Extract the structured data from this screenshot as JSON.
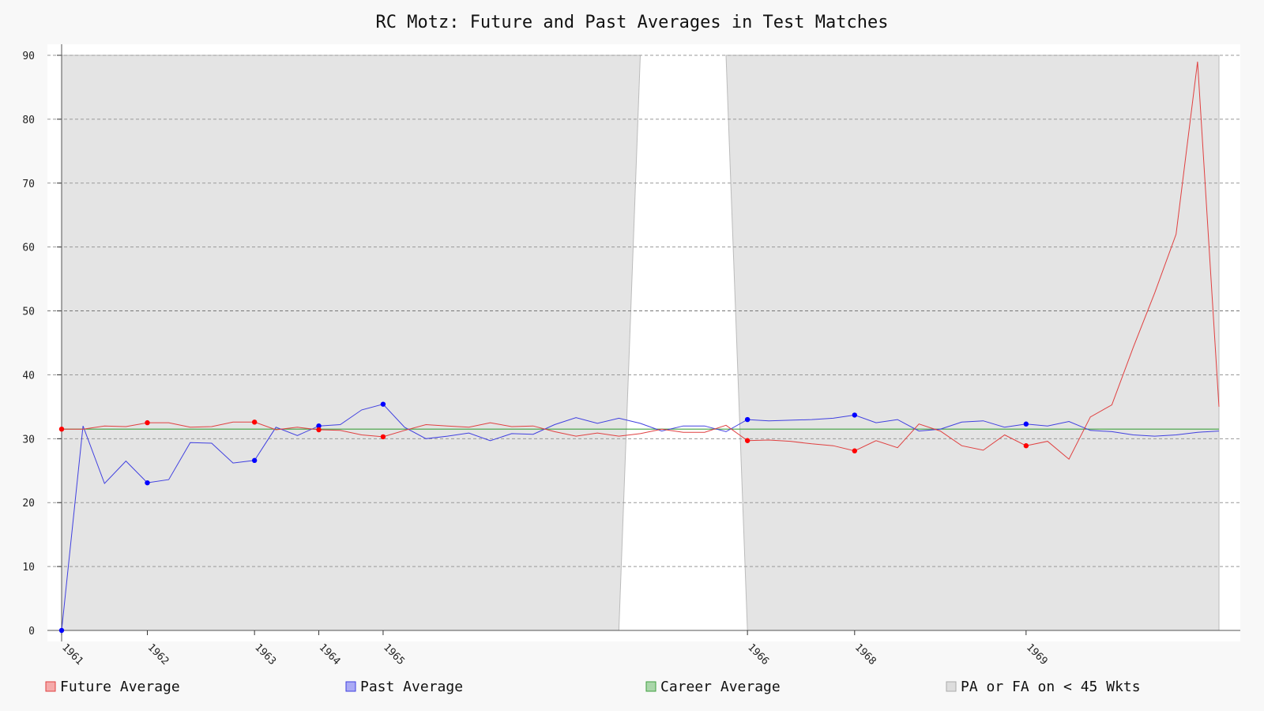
{
  "chart_data": {
    "type": "line",
    "title": "RC Motz: Future and Past Averages in Test Matches",
    "xlabel": "",
    "ylabel": "",
    "ylim": [
      0,
      90
    ],
    "yticks": [
      0,
      10,
      20,
      30,
      40,
      50,
      60,
      70,
      80,
      90
    ],
    "grid": true,
    "x": [
      0,
      1,
      2,
      3,
      4,
      5,
      6,
      7,
      8,
      9,
      10,
      11,
      12,
      13,
      14,
      15,
      16,
      17,
      18,
      19,
      20,
      21,
      22,
      23,
      24,
      25,
      26,
      27,
      28,
      29,
      30,
      31,
      32,
      33,
      34,
      35,
      36,
      37,
      38,
      39,
      40,
      41,
      42,
      43,
      44,
      45,
      46,
      47,
      48,
      49,
      50,
      51,
      52,
      53,
      54
    ],
    "year_ticks": [
      {
        "label": "1961",
        "index": 0
      },
      {
        "label": "1962",
        "index": 4
      },
      {
        "label": "1963",
        "index": 9
      },
      {
        "label": "1964",
        "index": 12
      },
      {
        "label": "1965",
        "index": 15
      },
      {
        "label": "1966",
        "index": 32
      },
      {
        "label": "1968",
        "index": 37
      },
      {
        "label": "1969",
        "index": 45
      }
    ],
    "series": [
      {
        "name": "Future Average",
        "color": "#e04040",
        "values": [
          31.5,
          31.5,
          32.0,
          31.9,
          32.5,
          32.5,
          31.8,
          31.9,
          32.6,
          32.6,
          31.4,
          31.8,
          31.4,
          31.3,
          30.6,
          30.3,
          31.3,
          32.2,
          32.0,
          31.8,
          32.5,
          31.9,
          32.0,
          31.1,
          30.4,
          30.9,
          30.4,
          30.8,
          31.5,
          31.0,
          31.0,
          32.1,
          29.7,
          29.8,
          29.6,
          29.2,
          28.9,
          28.1,
          29.7,
          28.6,
          32.3,
          31.2,
          28.9,
          28.2,
          30.6,
          28.9,
          29.6,
          26.8,
          33.4,
          35.3,
          44.3,
          52.8,
          62.0,
          89.0,
          35.0
        ],
        "markers": [
          0,
          4,
          9,
          12,
          15,
          32,
          37,
          45
        ]
      },
      {
        "name": "Past Average",
        "color": "#4040e0",
        "values": [
          0.0,
          32.0,
          23.0,
          26.5,
          23.1,
          23.6,
          29.4,
          29.3,
          26.2,
          26.6,
          31.8,
          30.5,
          32.0,
          32.2,
          34.5,
          35.4,
          31.8,
          30.0,
          30.4,
          30.9,
          29.7,
          30.8,
          30.7,
          32.2,
          33.3,
          32.4,
          33.2,
          32.4,
          31.2,
          32.0,
          32.0,
          31.1,
          33.0,
          32.8,
          32.9,
          33.0,
          33.2,
          33.7,
          32.5,
          33.0,
          31.2,
          31.5,
          32.6,
          32.8,
          31.8,
          32.3,
          32.0,
          32.7,
          31.3,
          31.1,
          30.6,
          30.4,
          30.6,
          31.0,
          31.2
        ],
        "markers": [
          0,
          4,
          9,
          12,
          15,
          32,
          37,
          45
        ]
      },
      {
        "name": "Career Average",
        "color": "#40a040",
        "value": 31.5
      },
      {
        "name": "PA or FA on < 45 Wkts",
        "color": "#d8d8d8"
      }
    ],
    "shaded_gap": {
      "bottom_from": 26.0,
      "bottom_to": 32.0,
      "top_from": 27.0,
      "top_to": 31.0
    }
  }
}
